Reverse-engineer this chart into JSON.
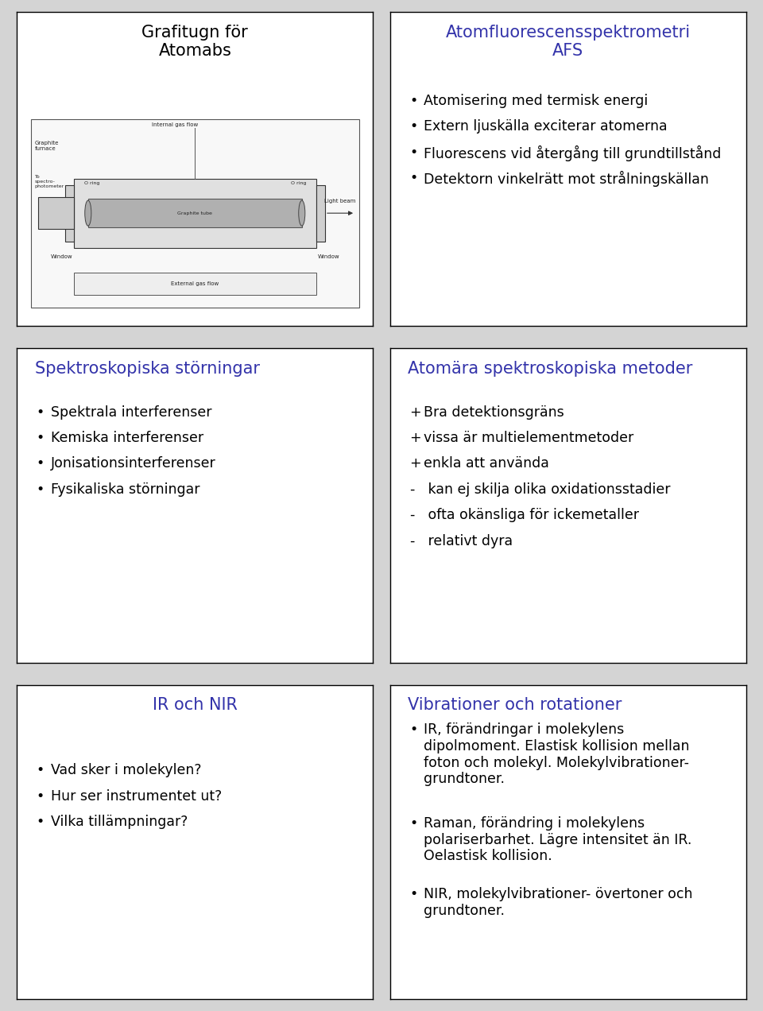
{
  "bg_color": "#d4d4d4",
  "panel_bg": "#ffffff",
  "panel_border": "#000000",
  "title_color": "#3333aa",
  "body_color": "#000000",
  "panels": [
    {
      "id": "top_left",
      "title": "Grafitugn för\nAtomabs",
      "title_color": "#000000",
      "title_size": 15,
      "title_align": "center",
      "has_image": true,
      "items": []
    },
    {
      "id": "top_right",
      "title": "Atomfluorescensspektrometri\nAFS",
      "title_color": "#3333aa",
      "title_size": 15,
      "title_align": "center",
      "has_image": false,
      "items": [
        {
          "bullet": "•",
          "text": "Atomisering med termisk energi",
          "lines": 1
        },
        {
          "bullet": "•",
          "text": "Extern ljuskälla exciterar atomerna",
          "lines": 1
        },
        {
          "bullet": "•",
          "text": "Fluorescens vid återgång till grundtillstånd",
          "lines": 1
        },
        {
          "bullet": "•",
          "text": "Detektorn vinkelrätt mot strålningskällan",
          "lines": 1
        }
      ]
    },
    {
      "id": "mid_left",
      "title": "Spektroskopiska störningar",
      "title_color": "#3333aa",
      "title_size": 15,
      "title_align": "left",
      "has_image": false,
      "items": [
        {
          "bullet": "•",
          "text": "Spektrala interferenser",
          "lines": 1
        },
        {
          "bullet": "•",
          "text": "Kemiska interferenser",
          "lines": 1
        },
        {
          "bullet": "•",
          "text": "Jonisationsinterferenser",
          "lines": 1
        },
        {
          "bullet": "•",
          "text": "Fysikaliska störningar",
          "lines": 1
        }
      ]
    },
    {
      "id": "mid_right",
      "title": "Atomära spektroskopiska metoder",
      "title_color": "#3333aa",
      "title_size": 15,
      "title_align": "left",
      "has_image": false,
      "items": [
        {
          "bullet": "+",
          "text": "Bra detektionsgräns",
          "lines": 1
        },
        {
          "bullet": "+",
          "text": "vissa är multielementmetoder",
          "lines": 1
        },
        {
          "bullet": "+",
          "text": "enkla att använda",
          "lines": 1
        },
        {
          "bullet": "-",
          "text": " kan ej skilja olika oxidationsstadier",
          "lines": 1
        },
        {
          "bullet": "-",
          "text": " ofta okänsliga för ickemetaller",
          "lines": 1
        },
        {
          "bullet": "-",
          "text": " relativt dyra",
          "lines": 1
        }
      ]
    },
    {
      "id": "bot_left",
      "title": "IR och NIR",
      "title_color": "#3333aa",
      "title_size": 15,
      "title_align": "center",
      "has_image": false,
      "items": [
        {
          "bullet": "•",
          "text": "Vad sker i molekylen?",
          "lines": 1
        },
        {
          "bullet": "•",
          "text": "Hur ser instrumentet ut?",
          "lines": 1
        },
        {
          "bullet": "•",
          "text": "Vilka tillämpningar?",
          "lines": 1
        }
      ]
    },
    {
      "id": "bot_right",
      "title": "Vibrationer och rotationer",
      "title_color": "#3333aa",
      "title_size": 15,
      "title_align": "left",
      "has_image": false,
      "items": [
        {
          "bullet": "•",
          "text": "IR, förändringar i molekylens\ndipolmoment. Elastisk kollision mellan\nfoton och molekyl. Molekylvibrationer-\ngrundtoner.",
          "lines": 4
        },
        {
          "bullet": "•",
          "text": "Raman, förändring i molekylens\npolariserbarhet. Lägre intensitet än IR.\nOelastisk kollision.",
          "lines": 3
        },
        {
          "bullet": "•",
          "text": "NIR, molekylvibrationer- övertoner och\ngrundtoner.",
          "lines": 2
        }
      ]
    }
  ]
}
